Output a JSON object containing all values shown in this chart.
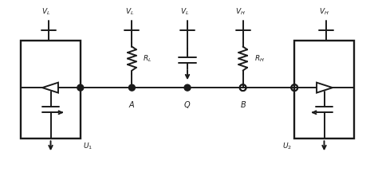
{
  "bg_color": "#ffffff",
  "line_color": "#1a1a1a",
  "lw": 1.4,
  "fig_w": 4.74,
  "fig_h": 2.45,
  "dpi": 100
}
